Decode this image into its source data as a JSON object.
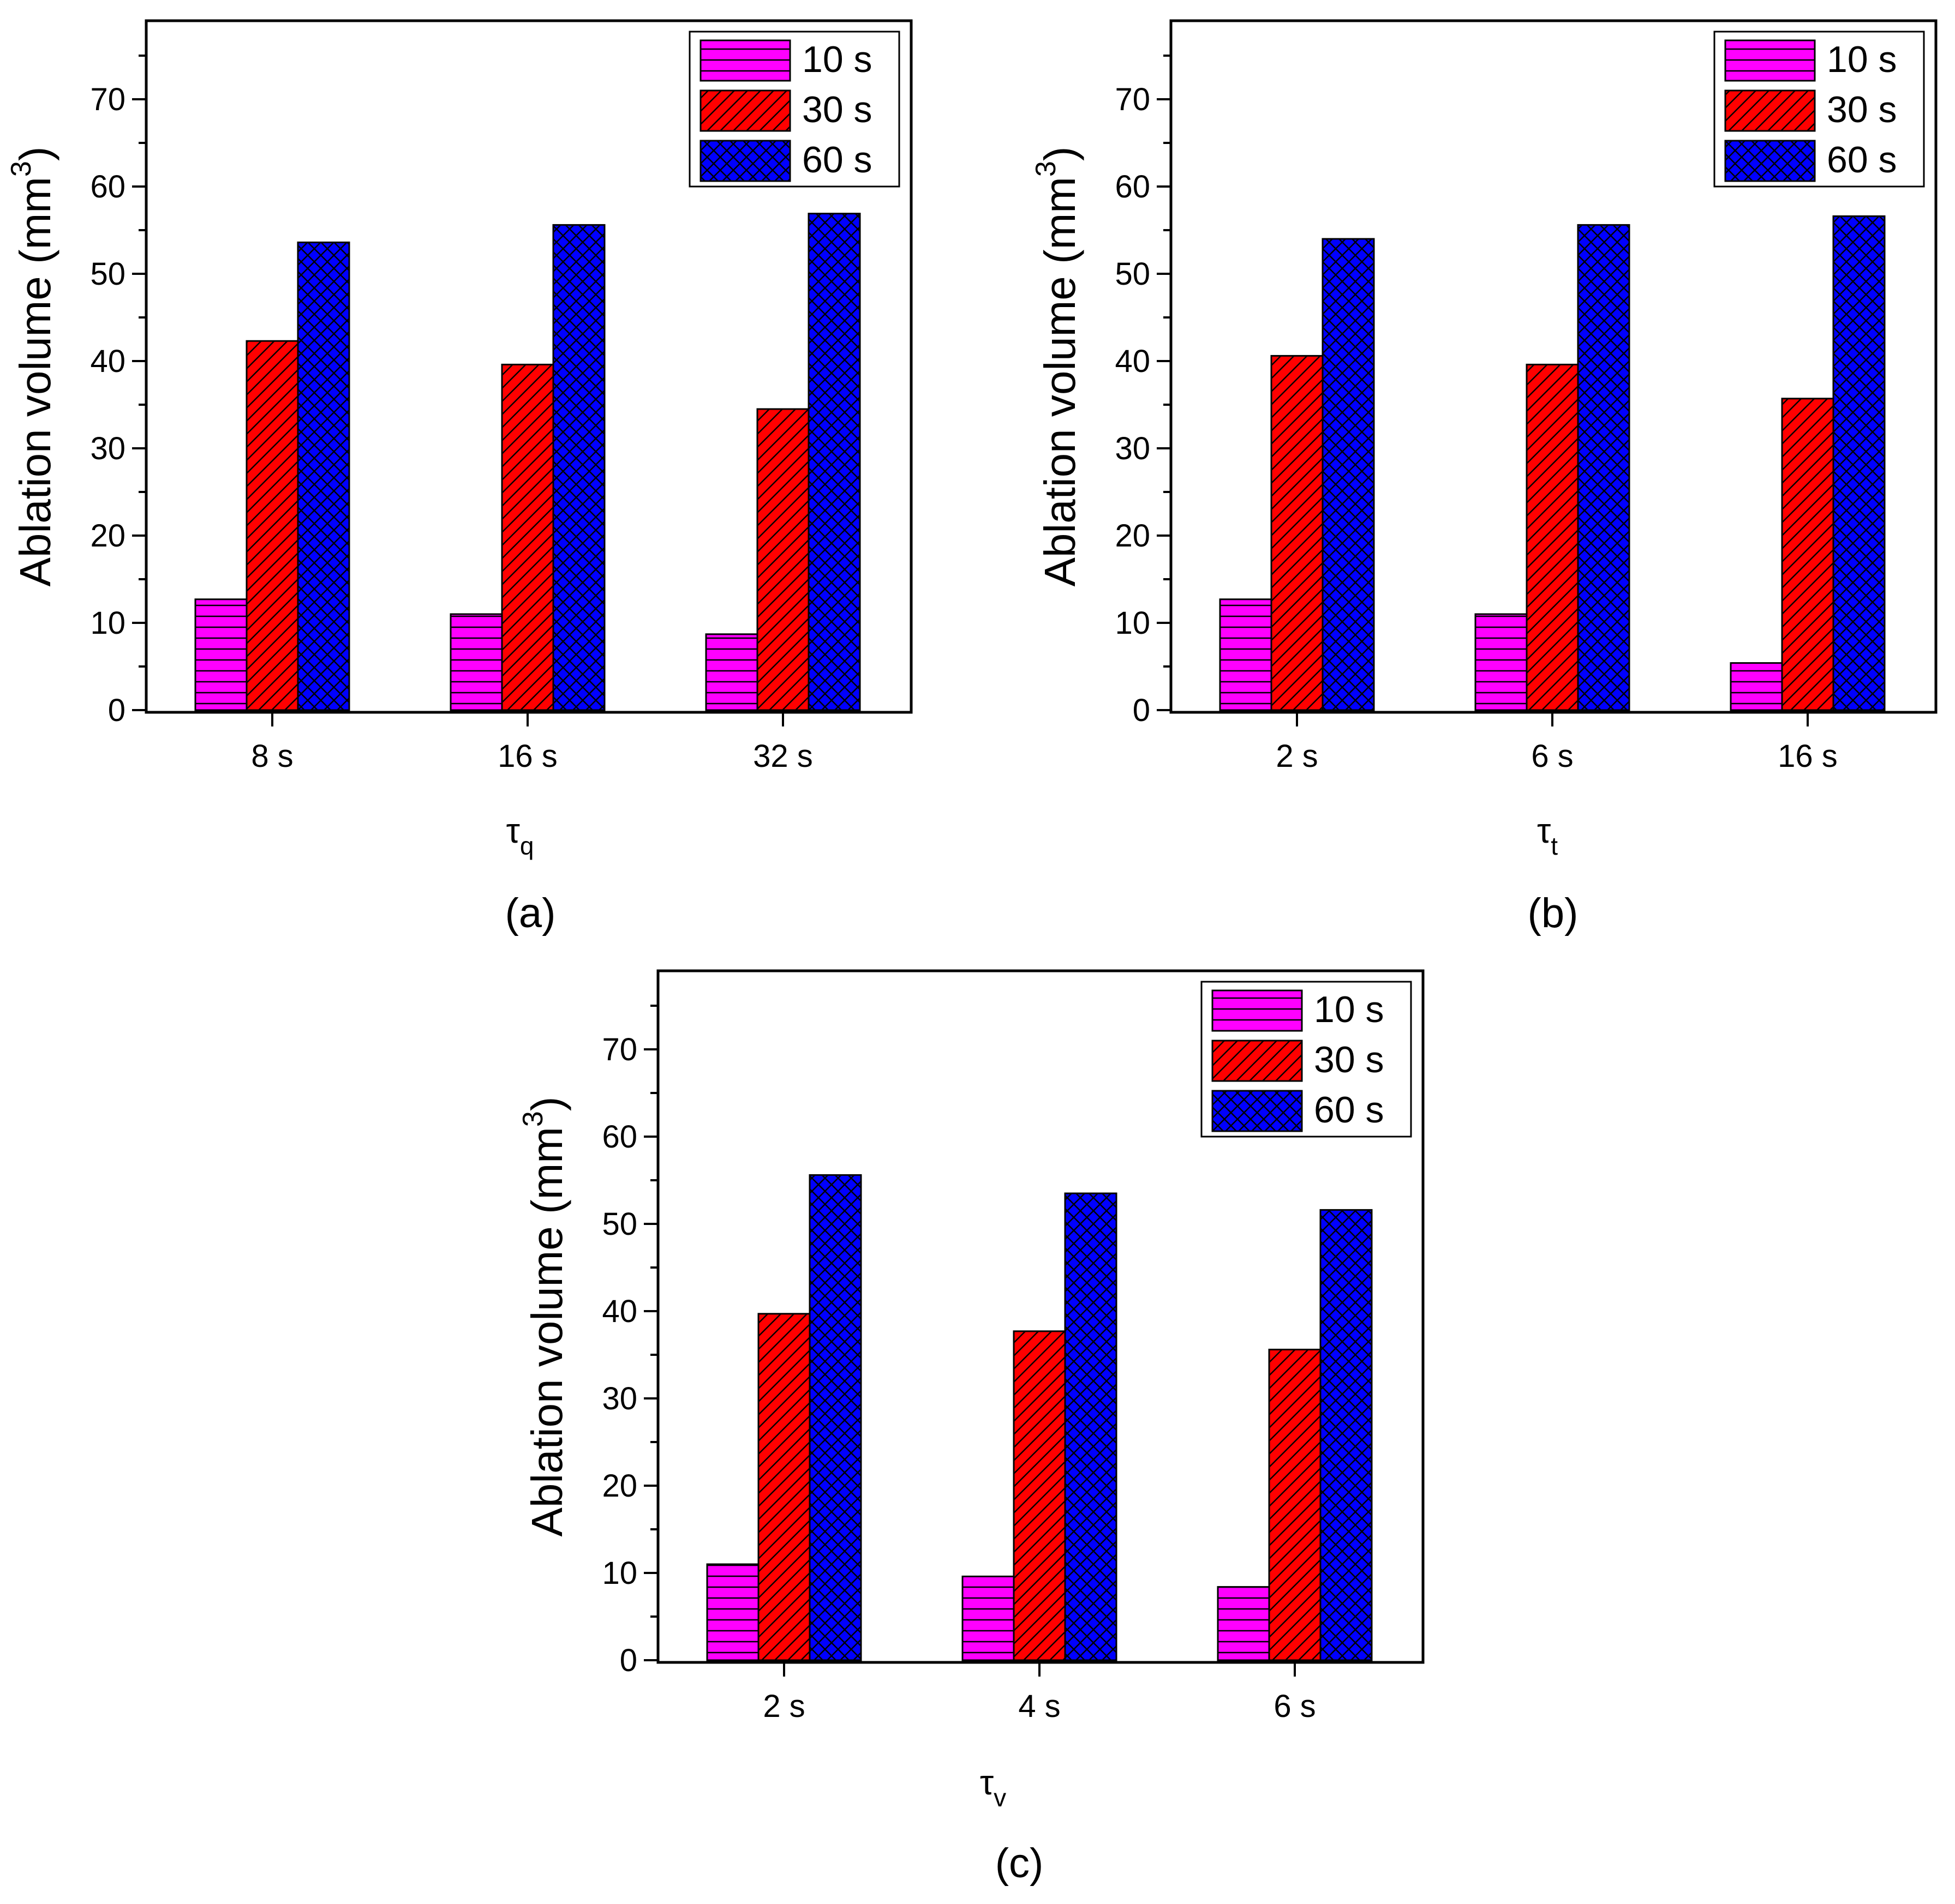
{
  "figure": {
    "captions": [
      "(a)",
      "(b)",
      "(c)"
    ]
  },
  "colors": {
    "series_10s": "#ff00ff",
    "series_30s": "#ff0000",
    "series_60s": "#0000ff",
    "axis": "#000000",
    "background": "#ffffff"
  },
  "chart_data": [
    {
      "type": "bar",
      "panel": "(a)",
      "title": "",
      "xlabel_symbol": "τ",
      "xlabel_sub": "q",
      "ylabel": "Ablation volume (mm",
      "ylabel_sup": "3",
      "ylabel_close": ")",
      "ylim": [
        0,
        79
      ],
      "yticks": [
        "0",
        "10",
        "20",
        "30",
        "40",
        "50",
        "60",
        "70"
      ],
      "categories": [
        "8 s",
        "16 s",
        "32 s"
      ],
      "series": [
        {
          "name": "10 s",
          "values": [
            12.7,
            11.0,
            8.7
          ]
        },
        {
          "name": "30 s",
          "values": [
            42.3,
            39.6,
            34.5
          ]
        },
        {
          "name": "60 s",
          "values": [
            53.6,
            55.6,
            56.9
          ]
        }
      ],
      "legend": "top-right",
      "grid": false
    },
    {
      "type": "bar",
      "panel": "(b)",
      "title": "",
      "xlabel_symbol": "τ",
      "xlabel_sub": "t",
      "ylabel": "Ablation volume (mm",
      "ylabel_sup": "3",
      "ylabel_close": ")",
      "ylim": [
        0,
        79
      ],
      "yticks": [
        "0",
        "10",
        "20",
        "30",
        "40",
        "50",
        "60",
        "70"
      ],
      "categories": [
        "2 s",
        "6 s",
        "16 s"
      ],
      "series": [
        {
          "name": "10 s",
          "values": [
            12.7,
            11.0,
            5.4
          ]
        },
        {
          "name": "30 s",
          "values": [
            40.6,
            39.6,
            35.7
          ]
        },
        {
          "name": "60 s",
          "values": [
            54.0,
            55.6,
            56.6
          ]
        }
      ],
      "legend": "top-right",
      "grid": false
    },
    {
      "type": "bar",
      "panel": "(c)",
      "title": "",
      "xlabel_symbol": "τ",
      "xlabel_sub": "v",
      "ylabel": "Ablation volume (mm",
      "ylabel_sup": "3",
      "ylabel_close": ")",
      "ylim": [
        0,
        79
      ],
      "yticks": [
        "0",
        "10",
        "20",
        "30",
        "40",
        "50",
        "60",
        "70"
      ],
      "categories": [
        "2 s",
        "4 s",
        "6 s"
      ],
      "series": [
        {
          "name": "10 s",
          "values": [
            11.0,
            9.6,
            8.4
          ]
        },
        {
          "name": "30 s",
          "values": [
            39.7,
            37.7,
            35.6
          ]
        },
        {
          "name": "60 s",
          "values": [
            55.6,
            53.5,
            51.6
          ]
        }
      ],
      "legend": "top-right",
      "grid": false
    }
  ]
}
